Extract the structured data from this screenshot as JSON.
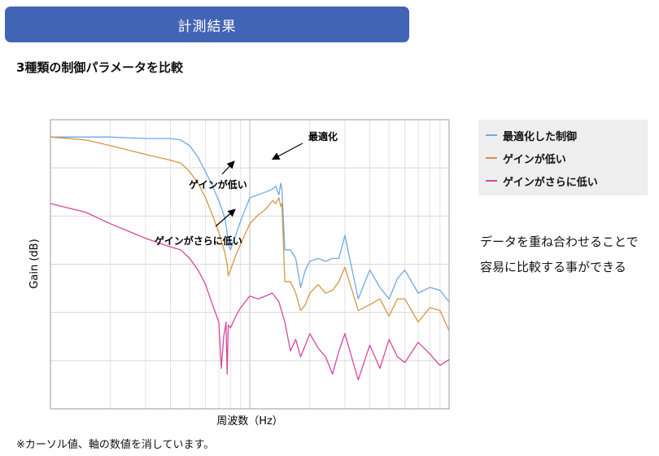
{
  "header": {
    "title": "計測結果"
  },
  "subtitle": "3種類の制御パラメータを比較",
  "side_note": {
    "line1": "データを重ね合わせることで",
    "line2": "容易に比較する事ができる"
  },
  "footnote": "※カーソル値、軸の数値を消しています。",
  "chart_data": {
    "type": "line",
    "xlabel": "周波数（Hz）",
    "ylabel": "Gain (dB)",
    "x_scale": "log",
    "x_decades": 2,
    "y_relative_range": [
      0,
      100
    ],
    "tick_labels_shown": false,
    "grid": true,
    "legend_position": "right",
    "series": [
      {
        "name": "最適化した制御",
        "color": "#6fa8e6",
        "x": [
          1,
          1.5,
          2,
          3,
          4,
          4.5,
          5,
          5.5,
          6,
          6.5,
          7,
          7.5,
          7.7,
          7.8,
          8,
          8.5,
          9,
          10,
          11,
          12,
          13,
          13.5,
          14,
          14.3,
          14.5,
          15,
          16,
          17,
          18,
          19,
          20,
          22,
          24,
          26,
          28,
          30,
          35,
          40,
          45,
          50,
          55,
          60,
          70,
          80,
          90,
          100
        ],
        "y": [
          94,
          94,
          94,
          93.5,
          93.5,
          93,
          91,
          87,
          82,
          77,
          72,
          66,
          61,
          57,
          55,
          60,
          65,
          73,
          74,
          75,
          76,
          77,
          74,
          78,
          76,
          55,
          55,
          52,
          42,
          48,
          51,
          52,
          51,
          52,
          52,
          60,
          38,
          48,
          42,
          38,
          45,
          48,
          40,
          42,
          41,
          37
        ]
      },
      {
        "name": "ゲインが低い",
        "color": "#d69645",
        "x": [
          1,
          1.5,
          2,
          3,
          4,
          4.5,
          5,
          5.5,
          6,
          6.5,
          7,
          7.5,
          7.7,
          7.8,
          8,
          8.5,
          9,
          10,
          11,
          12,
          13,
          13.5,
          14,
          14.3,
          14.5,
          15,
          16,
          17,
          18,
          19,
          20,
          22,
          24,
          26,
          28,
          30,
          35,
          40,
          45,
          50,
          55,
          60,
          70,
          80,
          90,
          100
        ],
        "y": [
          94,
          93,
          91,
          88,
          86,
          85,
          82,
          78,
          73,
          67,
          61,
          54,
          50,
          46,
          48,
          53,
          57,
          64,
          67,
          69,
          72,
          71,
          73,
          70,
          71,
          44,
          44,
          40,
          34,
          36,
          40,
          43,
          40,
          41,
          44,
          49,
          34,
          36,
          38,
          32,
          38,
          38,
          30,
          35,
          34,
          27
        ]
      },
      {
        "name": "ゲインがさらに低い",
        "color": "#d5489e",
        "x": [
          1,
          1.5,
          2,
          3,
          4,
          4.5,
          5,
          5.5,
          6,
          6.5,
          7,
          7.2,
          7.4,
          7.6,
          7.7,
          7.8,
          8,
          8.5,
          9,
          10,
          11,
          12,
          13,
          14,
          15,
          16,
          17,
          18,
          19,
          20,
          22,
          24,
          26,
          28,
          30,
          35,
          40,
          45,
          50,
          55,
          60,
          70,
          80,
          90,
          100
        ],
        "y": [
          71,
          68,
          64,
          59,
          56,
          55,
          52,
          48,
          43,
          36,
          30,
          14,
          25,
          30,
          12,
          29,
          28,
          32,
          35,
          39,
          38,
          39,
          40,
          37,
          30,
          20,
          24,
          18,
          22,
          26,
          21,
          18,
          12,
          20,
          26,
          10,
          22,
          14,
          24,
          18,
          16,
          23,
          19,
          15,
          17
        ]
      }
    ],
    "annotations": [
      {
        "text": "最適化",
        "target_series": 0
      },
      {
        "text": "ゲインが低い",
        "target_series": 1
      },
      {
        "text": "ゲインがさらに低い",
        "target_series": 2
      }
    ]
  }
}
